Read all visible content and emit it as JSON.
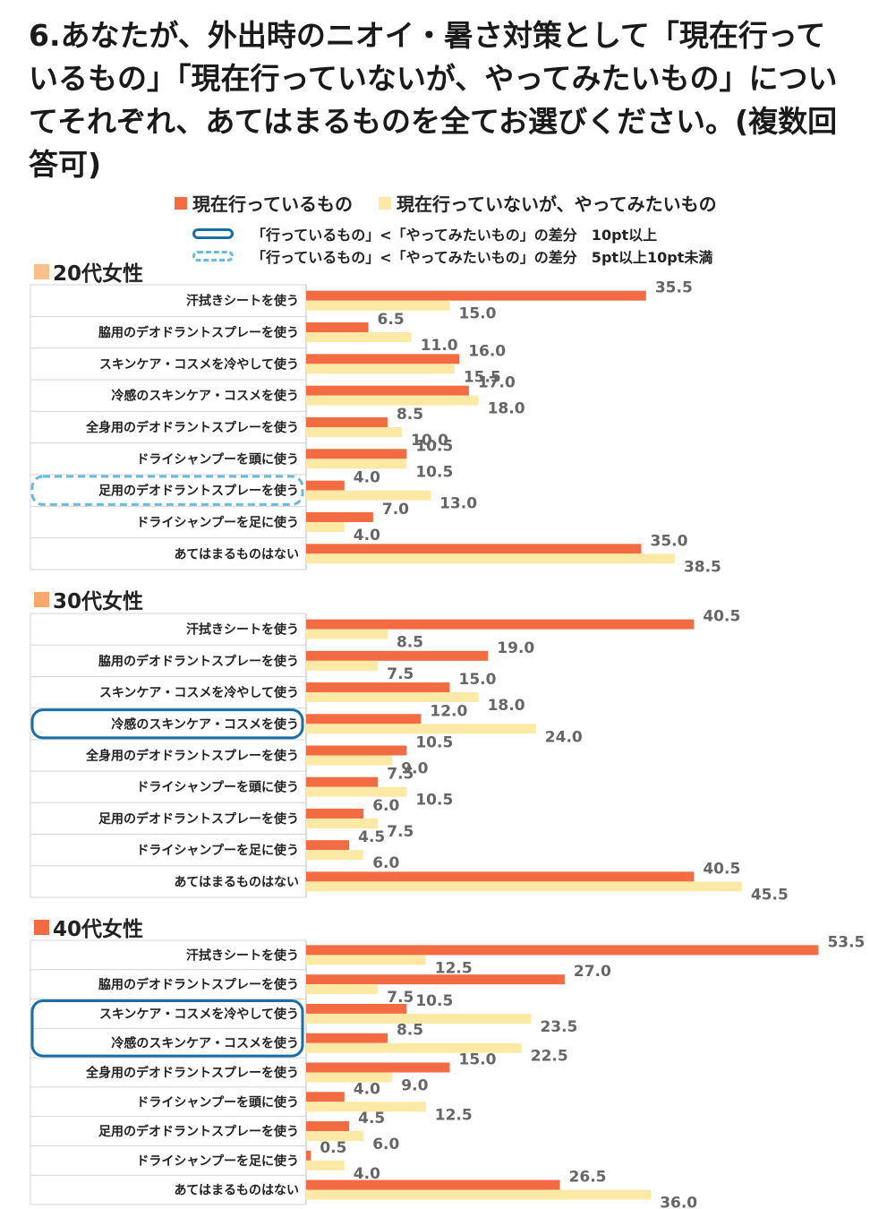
{
  "title": "6.あなたが、外出時のニオイ・暑さ対策として「現在行っているもの」「現在行っていないが、やってみたいもの」についてそれぞれ、あてはまるものを全てお選びください。(複数回答可)",
  "legend": {
    "current": "現在行っているもの",
    "want": "現在行っていないが、やってみたいもの"
  },
  "keys": {
    "solid": "「行っているもの」<「やってみたいもの」の差分　10pt以上",
    "dashed": "「行っているもの」<「やってみたいもの」の差分　5pt以上10pt未満"
  },
  "colors": {
    "current": "#f26b43",
    "want": "#fde9a6",
    "label_text": "#666666",
    "highlight_solid": "#1a6ea8",
    "highlight_dashed": "#6bb8e0",
    "square_20s": "#f9c08c",
    "square_30s": "#f7a86a",
    "square_40s": "#f26b43"
  },
  "chart_data": [
    {
      "type": "bar",
      "orientation": "horizontal",
      "title": "20代女性",
      "categories": [
        "汗拭きシートを使う",
        "脇用のデオドラントスプレーを使う",
        "スキンケア・コスメを冷やして使う",
        "冷感のスキンケア・コスメを使う",
        "全身用のデオドラントスプレーを使う",
        "ドライシャンプーを頭に使う",
        "足用のデオドラントスプレーを使う",
        "ドライシャンプーを足に使う",
        "あてはまるものはない"
      ],
      "series": [
        {
          "name": "現在行っているもの",
          "values": [
            35.5,
            6.5,
            16.0,
            17.0,
            8.5,
            10.5,
            4.0,
            7.0,
            35.0
          ]
        },
        {
          "name": "現在行っていないが、やってみたいもの",
          "values": [
            15.0,
            11.0,
            15.5,
            18.0,
            10.0,
            10.5,
            13.0,
            4.0,
            38.5
          ]
        }
      ],
      "labels_current": [
        "35.5",
        "6.5",
        "16.0",
        "17.0",
        "8.5",
        "10.5",
        "4.0",
        "7.0",
        "35.0"
      ],
      "labels_want": [
        "15.0",
        "11.0",
        "15.5",
        "18.0",
        "10.0",
        "10.5",
        "13.0",
        "4.0",
        "38.5"
      ],
      "highlights": [
        {
          "rows": [
            6
          ],
          "style": "dashed"
        }
      ]
    },
    {
      "type": "bar",
      "orientation": "horizontal",
      "title": "30代女性",
      "categories": [
        "汗拭きシートを使う",
        "脇用のデオドラントスプレーを使う",
        "スキンケア・コスメを冷やして使う",
        "冷感のスキンケア・コスメを使う",
        "全身用のデオドラントスプレーを使う",
        "ドライシャンプーを頭に使う",
        "足用のデオドラントスプレーを使う",
        "ドライシャンプーを足に使う",
        "あてはまるものはない"
      ],
      "series": [
        {
          "name": "現在行っているもの",
          "values": [
            40.5,
            19.0,
            15.0,
            12.0,
            10.5,
            7.5,
            6.0,
            4.5,
            40.5
          ]
        },
        {
          "name": "現在行っていないが、やってみたいもの",
          "values": [
            8.5,
            7.5,
            18.0,
            24.0,
            9.0,
            10.5,
            7.5,
            6.0,
            45.5
          ]
        }
      ],
      "labels_current": [
        "40.5",
        "19.0",
        "15.0",
        "12.0",
        "10.5",
        "7.5",
        "6.0",
        "4.5",
        "40.5"
      ],
      "labels_want": [
        "8.5",
        "7.5",
        "18.0",
        "24.0",
        "9.0",
        "10.5",
        "7.5",
        "6.0",
        "45.5"
      ],
      "highlights": [
        {
          "rows": [
            3
          ],
          "style": "solid"
        }
      ]
    },
    {
      "type": "bar",
      "orientation": "horizontal",
      "title": "40代女性",
      "categories": [
        "汗拭きシートを使う",
        "脇用のデオドラントスプレーを使う",
        "スキンケア・コスメを冷やして使う",
        "冷感のスキンケア・コスメを使う",
        "全身用のデオドラントスプレーを使う",
        "ドライシャンプーを頭に使う",
        "足用のデオドラントスプレーを使う",
        "ドライシャンプーを足に使う",
        "あてはまるものはない"
      ],
      "series": [
        {
          "name": "現在行っているもの",
          "values": [
            53.5,
            27.0,
            10.5,
            8.5,
            15.0,
            4.0,
            4.5,
            0.5,
            26.5
          ]
        },
        {
          "name": "現在行っていないが、やってみたいもの",
          "values": [
            12.5,
            7.5,
            23.5,
            22.5,
            9.0,
            12.5,
            6.0,
            4.0,
            36.0
          ]
        }
      ],
      "labels_current": [
        "53.5",
        "27.0",
        "10.5",
        "8.5",
        "15.0",
        "4.0",
        "4.5",
        "0.5",
        "26.5"
      ],
      "labels_want": [
        "12.5",
        "7.5",
        "23.5",
        "22.5",
        "9.0",
        "12.5",
        "6.0",
        "4.0",
        "36.0"
      ],
      "highlights": [
        {
          "rows": [
            2,
            3
          ],
          "style": "solid"
        }
      ]
    }
  ]
}
